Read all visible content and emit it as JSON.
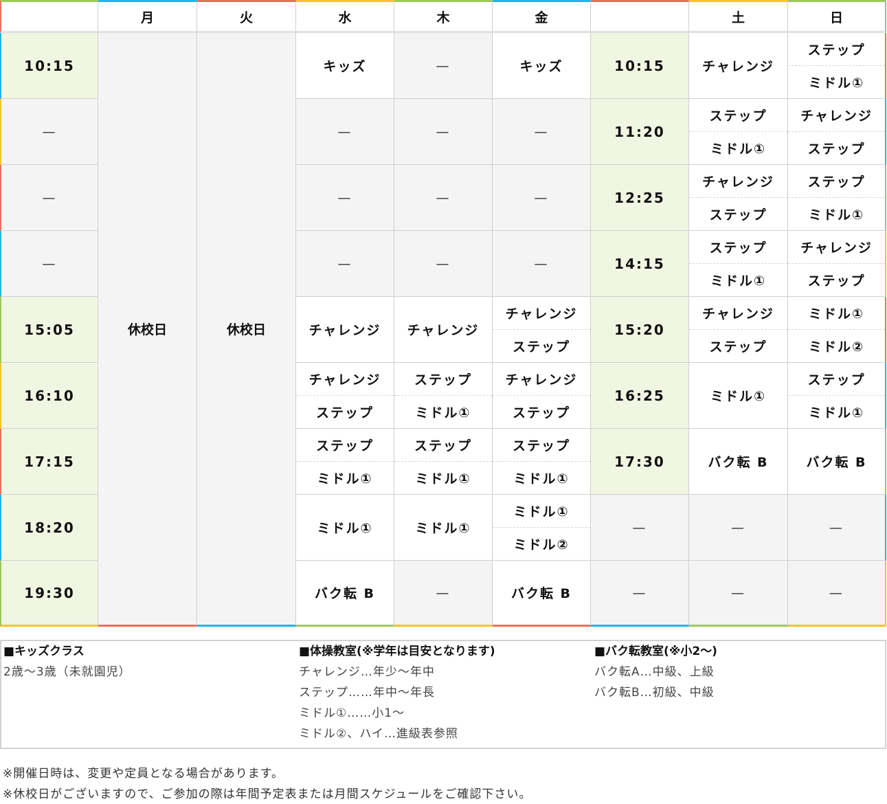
{
  "header": [
    "",
    "月",
    "火",
    "水",
    "木",
    "金",
    "",
    "土",
    "日"
  ],
  "closed_label": "休校日",
  "rows": [
    {
      "t1": "10:15",
      "wed": [
        "キッズ"
      ],
      "thu": [
        "—"
      ],
      "fri": [
        "キッズ"
      ],
      "t2": "10:15",
      "sat": [
        "チャレンジ"
      ],
      "sun": [
        "ステップ",
        "ミドル①"
      ]
    },
    {
      "t1": "—",
      "wed": [
        "—"
      ],
      "thu": [
        "—"
      ],
      "fri": [
        "—"
      ],
      "t2": "11:20",
      "sat": [
        "ステップ",
        "ミドル①"
      ],
      "sun": [
        "チャレンジ",
        "ステップ"
      ]
    },
    {
      "t1": "—",
      "wed": [
        "—"
      ],
      "thu": [
        "—"
      ],
      "fri": [
        "—"
      ],
      "t2": "12:25",
      "sat": [
        "チャレンジ",
        "ステップ"
      ],
      "sun": [
        "ステップ",
        "ミドル①"
      ]
    },
    {
      "t1": "—",
      "wed": [
        "—"
      ],
      "thu": [
        "—"
      ],
      "fri": [
        "—"
      ],
      "t2": "14:15",
      "sat": [
        "ステップ",
        "ミドル①"
      ],
      "sun": [
        "チャレンジ",
        "ステップ"
      ]
    },
    {
      "t1": "15:05",
      "wed": [
        "チャレンジ"
      ],
      "thu": [
        "チャレンジ"
      ],
      "fri": [
        "チャレンジ",
        "ステップ"
      ],
      "t2": "15:20",
      "sat": [
        "チャレンジ",
        "ステップ"
      ],
      "sun": [
        "ミドル①",
        "ミドル②"
      ]
    },
    {
      "t1": "16:10",
      "wed": [
        "チャレンジ",
        "ステップ"
      ],
      "thu": [
        "ステップ",
        "ミドル①"
      ],
      "fri": [
        "チャレンジ",
        "ステップ"
      ],
      "t2": "16:25",
      "sat": [
        "ミドル①"
      ],
      "sun": [
        "ステップ",
        "ミドル①"
      ]
    },
    {
      "t1": "17:15",
      "wed": [
        "ステップ",
        "ミドル①"
      ],
      "thu": [
        "ステップ",
        "ミドル①"
      ],
      "fri": [
        "ステップ",
        "ミドル①"
      ],
      "t2": "17:30",
      "sat": [
        "バク転 B"
      ],
      "sun": [
        "バク転 B"
      ]
    },
    {
      "t1": "18:20",
      "wed": [
        "ミドル①"
      ],
      "thu": [
        "ミドル①"
      ],
      "fri": [
        "ミドル①",
        "ミドル②"
      ],
      "t2": "—",
      "sat": [
        "—"
      ],
      "sun": [
        "—"
      ]
    },
    {
      "t1": "19:30",
      "wed": [
        "バク転 B"
      ],
      "thu": [
        "—"
      ],
      "fri": [
        "バク転 B"
      ],
      "t2": "—",
      "sat": [
        "—"
      ],
      "sun": [
        "—"
      ]
    }
  ],
  "legend": [
    {
      "title": "■キッズクラス",
      "lines": [
        "2歳〜3歳（未就園児）"
      ]
    },
    {
      "title": "■体操教室(※学年は目安となります)",
      "lines": [
        "チャレンジ…年少〜年中",
        "ステップ……年中〜年長",
        "ミドル①……小1〜",
        "ミドル②、ハイ…進級表参照"
      ]
    },
    {
      "title": "■バク転教室(※小2〜)",
      "lines": [
        "バク転A…中級、上級",
        "バク転B…初級、中級"
      ]
    }
  ],
  "notes": [
    "※開催日時は、変更や定員となる場合があります。",
    "※休校日がございますので、ご参加の際は年間予定表または月間スケジュールをご確認下さい。"
  ],
  "colors": {
    "green": "#9ec95a",
    "blue": "#1fb7e8",
    "red": "#ec6f5a",
    "yellow": "#f5c42c",
    "time_bg": "#f1f6e2",
    "empty_bg": "#f4f4f4"
  }
}
